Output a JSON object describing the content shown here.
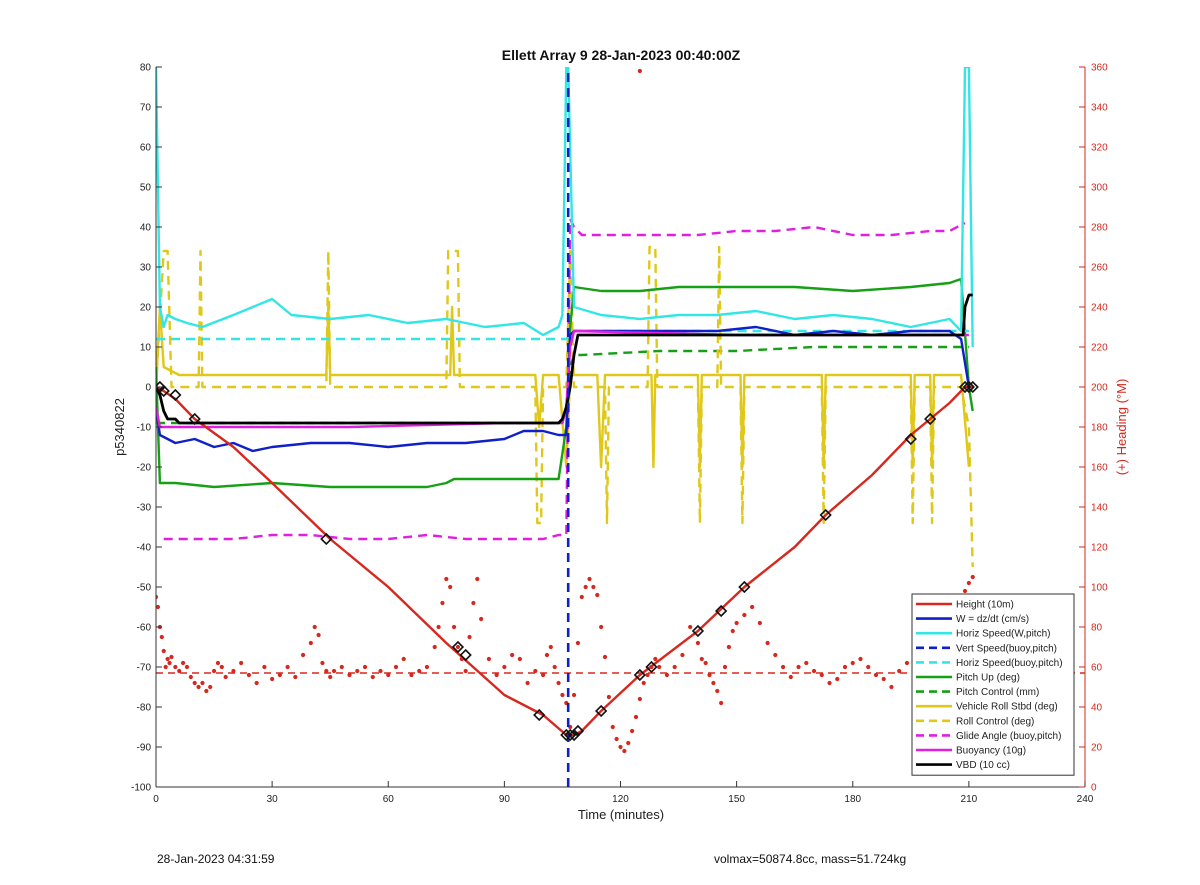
{
  "footer": {
    "timestamp": "28-Jan-2023 04:31:59",
    "summary": "volmax=50874.8cc, mass=51.724kg"
  },
  "colors": {
    "height": "#d6281e",
    "vertical_speed": "#1020c8",
    "horizontal_speed": "#33e6e6",
    "pitch": "#16a016",
    "roll": "#e0c81a",
    "glide_angle": "#e020e0",
    "buoyancy": "#e020e0",
    "vbd": "#000000",
    "heading_axis": "#d6281e"
  },
  "chart_data": {
    "type": "line",
    "title": "Ellett Array 9 28-Jan-2023 00:40:00Z",
    "xlabel": "Time (minutes)",
    "ylabel": "p5340822",
    "ylabel_right": "(+) Heading (°M)",
    "xlim": [
      0,
      240
    ],
    "ylim": [
      -100,
      80
    ],
    "ylim_right": [
      0,
      360
    ],
    "x_ticks": [
      0,
      30,
      60,
      90,
      120,
      150,
      180,
      210,
      240
    ],
    "y_ticks": [
      -100,
      -90,
      -80,
      -70,
      -60,
      -50,
      -40,
      -30,
      -20,
      -10,
      0,
      10,
      20,
      30,
      40,
      50,
      60,
      70,
      80
    ],
    "y_ticks_right": [
      0,
      20,
      40,
      60,
      80,
      100,
      120,
      140,
      160,
      180,
      200,
      220,
      240,
      260,
      280,
      300,
      320,
      340,
      360
    ],
    "grid": false,
    "legend_position": "bottom-right",
    "series": [
      {
        "name": "Height (10m)",
        "style": "solid",
        "color_key": "height",
        "x": [
          0,
          2,
          5,
          10,
          20,
          30,
          45,
          60,
          75,
          90,
          100,
          106,
          108,
          110,
          115,
          125,
          140,
          152,
          165,
          173,
          185,
          195,
          200,
          205,
          209,
          211
        ],
        "y": [
          0,
          -1,
          -3,
          -8,
          -15,
          -24,
          -38,
          -50,
          -64,
          -77,
          -82,
          -87,
          -87,
          -86,
          -81,
          -72,
          -61,
          -50,
          -40,
          -32,
          -22,
          -12,
          -8,
          -4,
          0,
          0
        ]
      },
      {
        "name": "W = dz/dt (cm/s)",
        "style": "solid",
        "color_key": "vertical_speed",
        "x": [
          0,
          1,
          5,
          10,
          15,
          20,
          25,
          30,
          40,
          50,
          60,
          70,
          80,
          90,
          95,
          100,
          104,
          106,
          107,
          108,
          115,
          125,
          135,
          145,
          155,
          165,
          175,
          185,
          195,
          205,
          208,
          210
        ],
        "y": [
          -5,
          -12,
          -14,
          -13,
          -15,
          -14,
          -16,
          -15,
          -14,
          -14,
          -15,
          -14,
          -14,
          -13,
          -11,
          -11,
          -12,
          -12,
          13,
          14,
          14,
          14,
          14,
          14,
          15,
          13,
          14,
          13,
          14,
          14,
          12,
          0
        ]
      },
      {
        "name": "Horiz Speed(W,pitch)",
        "style": "solid",
        "color_key": "horizontal_speed",
        "x": [
          0,
          1,
          2,
          3,
          5,
          8,
          12,
          20,
          25,
          30,
          35,
          45,
          55,
          65,
          75,
          85,
          95,
          100,
          104,
          105,
          106,
          106.5,
          108,
          115,
          125,
          135,
          145,
          155,
          165,
          175,
          185,
          195,
          205,
          208,
          209,
          210,
          211
        ],
        "y": [
          80,
          20,
          15,
          18,
          17,
          16,
          15,
          18,
          20,
          22,
          18,
          17,
          18,
          16,
          17,
          15,
          16,
          13,
          15,
          18,
          80,
          80,
          20,
          18,
          17,
          18,
          18,
          19,
          17,
          18,
          17,
          15,
          17,
          14,
          80,
          80,
          10
        ]
      },
      {
        "name": "Vert Speed(buoy,pitch)",
        "style": "dashed",
        "color_key": "vertical_speed",
        "x": [
          106.5,
          106.5
        ],
        "y": [
          -100,
          80
        ]
      },
      {
        "name": "Horiz Speed(buoy,pitch)",
        "style": "dashed",
        "color_key": "horizontal_speed",
        "x": [
          0,
          106,
          108,
          210
        ],
        "y": [
          12,
          12,
          14,
          14
        ]
      },
      {
        "name": "Pitch Up (deg)",
        "style": "solid",
        "color_key": "pitch",
        "x": [
          0,
          1,
          5,
          15,
          30,
          45,
          60,
          70,
          75,
          77,
          90,
          100,
          104,
          106,
          107,
          108,
          115,
          125,
          135,
          150,
          165,
          180,
          195,
          205,
          208,
          210,
          211
        ],
        "y": [
          5,
          -24,
          -24,
          -25,
          -24,
          -25,
          -25,
          -25,
          -24,
          -23,
          -23,
          -23,
          -23,
          -10,
          15,
          25,
          24,
          24,
          25,
          25,
          25,
          24,
          25,
          26,
          27,
          0,
          -6
        ]
      },
      {
        "name": "Pitch Control (mm)",
        "style": "dashed",
        "color_key": "pitch",
        "x": [
          0,
          104,
          105,
          106,
          107,
          108,
          110,
          130,
          150,
          170,
          190,
          205,
          209,
          210
        ],
        "y": [
          -9,
          -9,
          -9,
          -5,
          5,
          8,
          8,
          9,
          9,
          10,
          10,
          10,
          10,
          10
        ]
      },
      {
        "name": "Vehicle Roll Stbd (deg)",
        "style": "solid",
        "color_key": "roll",
        "x": [
          0,
          1,
          2,
          4,
          6,
          10,
          20,
          44,
          44.5,
          45,
          60,
          76,
          76.5,
          77,
          90,
          98,
          99,
          100,
          104,
          106,
          107,
          108,
          114,
          115,
          116,
          117,
          128,
          128.5,
          129,
          140,
          140.5,
          141,
          151,
          151.5,
          152,
          172,
          172.5,
          173,
          195,
          195.5,
          196,
          200,
          200.5,
          201,
          205,
          208,
          210
        ],
        "y": [
          0,
          20,
          5,
          4,
          3,
          3,
          3,
          3,
          20,
          3,
          3,
          3,
          20,
          3,
          3,
          3,
          -10,
          3,
          3,
          -20,
          3,
          3,
          3,
          -20,
          3,
          3,
          3,
          -20,
          3,
          3,
          -20,
          3,
          3,
          -20,
          3,
          3,
          -20,
          3,
          3,
          -20,
          3,
          3,
          -20,
          3,
          3,
          3,
          -20
        ]
      },
      {
        "name": "Roll Control (deg)",
        "style": "dashed",
        "color_key": "roll",
        "x": [
          0,
          2,
          3,
          4,
          11,
          11.5,
          12,
          44,
          44.5,
          45,
          75,
          75.5,
          78,
          78.5,
          98,
          98.5,
          99.5,
          100,
          106,
          107,
          108,
          116,
          116.5,
          117,
          127,
          127.5,
          129,
          129.5,
          140,
          140.5,
          141,
          145,
          145.5,
          146,
          151,
          151.5,
          152,
          172,
          172.5,
          173,
          195,
          195.5,
          196,
          200,
          200.5,
          201,
          207,
          208,
          210,
          211
        ],
        "y": [
          0,
          34,
          34,
          0,
          0,
          34,
          0,
          0,
          34,
          0,
          0,
          34,
          34,
          0,
          0,
          -34,
          -34,
          0,
          0,
          34,
          0,
          0,
          -34,
          0,
          0,
          35,
          35,
          0,
          0,
          -34,
          0,
          0,
          35,
          0,
          0,
          -34,
          0,
          0,
          -34,
          0,
          0,
          -34,
          0,
          0,
          -34,
          0,
          0,
          0,
          -10,
          -45
        ]
      },
      {
        "name": "Glide Angle (buoy,pitch)",
        "style": "dashed",
        "color_key": "glide_angle",
        "x": [
          2,
          10,
          20,
          30,
          40,
          50,
          60,
          70,
          80,
          90,
          100,
          104,
          106,
          107,
          108,
          110,
          120,
          130,
          140,
          150,
          160,
          170,
          180,
          190,
          200,
          205,
          209
        ],
        "y": [
          -38,
          -38,
          -38,
          -37,
          -37,
          -38,
          -38,
          -37,
          -38,
          -38,
          -38,
          -37,
          -37,
          42,
          40,
          38,
          38,
          38,
          38,
          39,
          39,
          40,
          38,
          38,
          39,
          39,
          41
        ]
      },
      {
        "name": "Buoyancy (10g)",
        "style": "solid",
        "color_key": "buoyancy",
        "x": [
          0,
          1,
          10,
          50,
          90,
          100,
          104,
          105,
          106,
          107,
          108,
          150,
          200,
          209,
          210
        ],
        "y": [
          -5,
          -10,
          -10,
          -10,
          -9,
          -9,
          -9,
          -9,
          -5,
          10,
          14,
          13,
          13,
          13,
          13
        ]
      },
      {
        "name": "VBD (10 cc)",
        "style": "solid",
        "color_key": "vbd",
        "x": [
          0,
          1,
          2,
          3,
          4,
          5,
          6,
          104,
          105,
          106,
          107,
          108,
          109,
          110,
          112,
          130,
          150,
          180,
          208,
          208.5,
          209,
          210,
          211
        ],
        "y": [
          0,
          -2,
          -6,
          -8,
          -8,
          -8,
          -9,
          -9,
          -8,
          -5,
          0,
          8,
          13,
          13,
          13,
          13,
          13,
          13,
          13,
          13,
          20,
          23,
          23
        ]
      }
    ],
    "heading_reference_line": {
      "style": "dashed",
      "color_key": "heading_axis",
      "x": [
        0,
        240
      ],
      "y_right": [
        57,
        57
      ]
    },
    "heading_points": {
      "style": "dots",
      "color_key": "heading_axis",
      "axis": "right",
      "x": [
        0,
        0.5,
        1,
        1.5,
        2,
        2.5,
        3,
        3.5,
        4,
        5,
        6,
        7,
        8,
        9,
        10,
        11,
        12,
        13,
        14,
        15,
        16,
        17,
        18,
        20,
        22,
        24,
        26,
        28,
        30,
        32,
        34,
        36,
        38,
        40,
        41,
        42,
        43,
        44,
        45,
        46,
        48,
        50,
        52,
        54,
        56,
        58,
        60,
        62,
        64,
        66,
        68,
        70,
        72,
        73,
        74,
        75,
        76,
        77,
        78,
        79,
        80,
        81,
        82,
        83,
        84,
        86,
        88,
        90,
        92,
        94,
        96,
        98,
        100,
        101,
        102,
        103,
        104,
        105,
        106,
        107,
        108,
        109,
        110,
        111,
        112,
        113,
        114,
        115,
        116,
        117,
        118,
        119,
        120,
        121,
        122,
        123,
        124,
        125,
        126,
        127,
        128,
        129,
        130,
        132,
        134,
        136,
        138,
        140,
        141,
        142,
        143,
        144,
        145,
        146,
        147,
        148,
        149,
        150,
        152,
        154,
        156,
        158,
        160,
        162,
        164,
        166,
        168,
        170,
        172,
        174,
        176,
        178,
        180,
        182,
        184,
        186,
        188,
        190,
        192,
        194,
        196,
        198,
        200,
        202,
        204,
        206,
        207,
        208,
        209,
        210,
        211,
        125
      ],
      "y": [
        95,
        90,
        80,
        75,
        68,
        60,
        64,
        62,
        65,
        60,
        58,
        62,
        60,
        55,
        52,
        50,
        52,
        48,
        50,
        58,
        62,
        60,
        55,
        58,
        62,
        56,
        52,
        60,
        54,
        56,
        60,
        55,
        66,
        72,
        80,
        76,
        62,
        58,
        55,
        58,
        60,
        56,
        58,
        60,
        55,
        58,
        56,
        60,
        64,
        56,
        58,
        60,
        70,
        80,
        92,
        104,
        100,
        80,
        70,
        64,
        58,
        75,
        92,
        104,
        84,
        64,
        56,
        60,
        66,
        64,
        52,
        58,
        56,
        66,
        70,
        60,
        52,
        46,
        42,
        30,
        46,
        72,
        95,
        100,
        104,
        100,
        96,
        80,
        65,
        45,
        30,
        24,
        20,
        18,
        22,
        28,
        35,
        44,
        52,
        56,
        60,
        64,
        60,
        56,
        60,
        66,
        80,
        72,
        64,
        62,
        56,
        52,
        48,
        42,
        60,
        70,
        78,
        82,
        86,
        90,
        82,
        72,
        66,
        60,
        55,
        60,
        62,
        58,
        56,
        52,
        54,
        60,
        62,
        64,
        60,
        56,
        54,
        50,
        58,
        62,
        70,
        74,
        80,
        82,
        78,
        86,
        92,
        95,
        98,
        102,
        105,
        358
      ]
    },
    "markers": {
      "style": "diamond/triangle",
      "series": "Height (10m)",
      "x": [
        1,
        2,
        5,
        10,
        44,
        78,
        80,
        99,
        106,
        107,
        108,
        109,
        115,
        125,
        128,
        140,
        146,
        152,
        173,
        195,
        200,
        209,
        210,
        211
      ],
      "y": [
        0,
        -1,
        -2,
        -8,
        -38,
        -65,
        -67,
        -82,
        -87,
        -87,
        -87,
        -86,
        -81,
        -72,
        -70,
        -61,
        -56,
        -50,
        -32,
        -13,
        -8,
        0,
        0,
        0
      ]
    }
  }
}
